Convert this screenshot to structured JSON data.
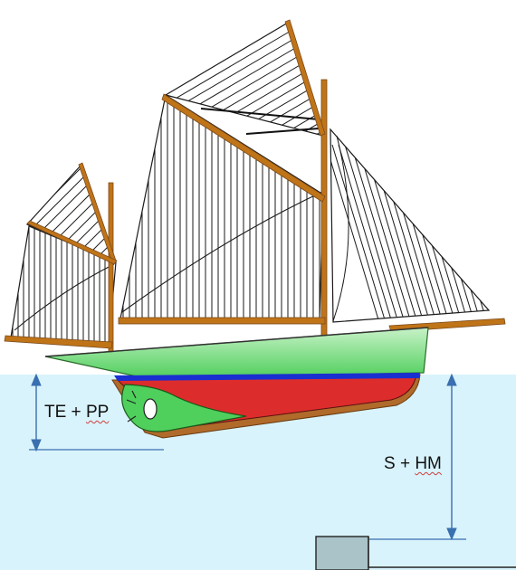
{
  "labels": {
    "left": {
      "prefix": "TE + ",
      "suffix": "PP"
    },
    "right": {
      "prefix": "S + ",
      "suffix": "HM"
    }
  },
  "colors": {
    "water": "#d8f3fb",
    "hull_upper": "#5fd36a",
    "hull_light": "#c8f2c8",
    "hull_red": "#dd2c2c",
    "stripe_blue": "#1a2fd0",
    "wood": "#c07418",
    "wood_dark": "#7a4a1a",
    "arrow": "#3a6fb0",
    "pontoon": "#a9c3c9"
  },
  "icons": [
    "arrow-icon",
    "propeller-icon"
  ]
}
